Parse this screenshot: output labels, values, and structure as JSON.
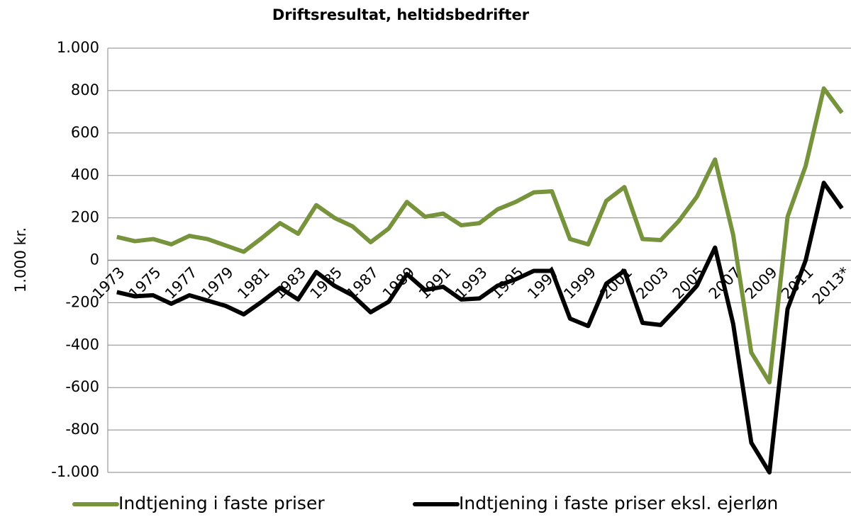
{
  "chart_data": {
    "type": "line",
    "title": "Driftsresultat, heltidsbedrifter",
    "y_label": "1.000 kr.",
    "categories": [
      "1973",
      null,
      "1975",
      null,
      "1977",
      null,
      "1979",
      null,
      "1981",
      null,
      "1983",
      null,
      "1985",
      null,
      "1987",
      null,
      "1989",
      null,
      "1991",
      null,
      "1993",
      null,
      "1995",
      null,
      "1997",
      null,
      "1999",
      null,
      "2001",
      null,
      "2003",
      null,
      "2005",
      null,
      "2007",
      null,
      "2009",
      null,
      "2011",
      null,
      "2013*"
    ],
    "series": [
      {
        "name": "Indtjening i faste priser",
        "color": "#77933c",
        "values": [
          110,
          90,
          100,
          75,
          115,
          100,
          70,
          40,
          105,
          175,
          125,
          260,
          200,
          160,
          85,
          150,
          275,
          205,
          220,
          165,
          175,
          240,
          275,
          320,
          325,
          100,
          75,
          280,
          345,
          100,
          95,
          185,
          300,
          475,
          120,
          -435,
          -575,
          205,
          445,
          810,
          695
        ]
      },
      {
        "name": "Indtjening i faste priser eksl. ejerløn",
        "color": "#000000",
        "values": [
          -150,
          -170,
          -165,
          -205,
          -165,
          -190,
          -215,
          -255,
          -195,
          -130,
          -185,
          -55,
          -120,
          -165,
          -245,
          -195,
          -65,
          -140,
          -125,
          -185,
          -180,
          -120,
          -90,
          -50,
          -50,
          -275,
          -310,
          -110,
          -50,
          -295,
          -305,
          -215,
          -120,
          60,
          -300,
          -860,
          -1000,
          -230,
          0,
          365,
          245
        ]
      }
    ],
    "ylim": [
      -1000,
      1000
    ],
    "yticks": [
      {
        "value": -1000,
        "label": "-1.000"
      },
      -800,
      -600,
      -400,
      -200,
      0,
      200,
      400,
      600,
      800,
      {
        "value": 1000,
        "label": "1.000"
      }
    ],
    "grid": true,
    "legend": "bottom"
  }
}
